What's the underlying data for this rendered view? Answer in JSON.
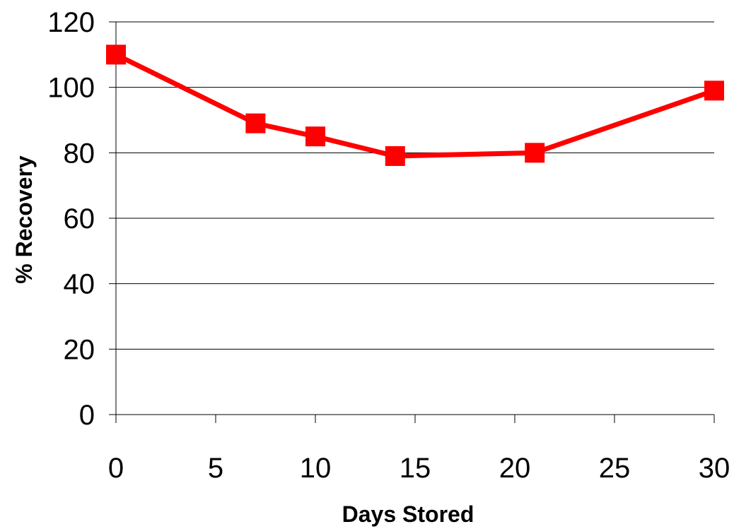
{
  "chart_data": {
    "type": "line",
    "title": "",
    "xlabel": "Days Stored",
    "ylabel": "% Recovery",
    "xlim": [
      0,
      30
    ],
    "ylim": [
      0,
      120
    ],
    "x_ticks": [
      "0",
      "5",
      "10",
      "15",
      "20",
      "25",
      "30"
    ],
    "y_ticks": [
      "0",
      "20",
      "40",
      "60",
      "80",
      "100",
      "120"
    ],
    "grid": "horizontal",
    "legend": "none",
    "series": [
      {
        "x": [
          0,
          7,
          10,
          14,
          21,
          30
        ],
        "y": [
          110,
          89,
          85,
          79,
          80,
          99
        ],
        "color": "#ff0000",
        "marker": "square"
      }
    ]
  }
}
